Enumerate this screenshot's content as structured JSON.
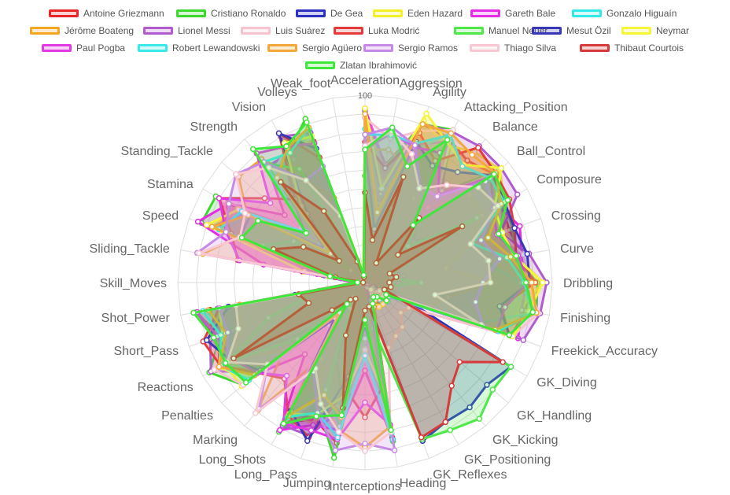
{
  "chart_data": {
    "type": "radar",
    "title": "",
    "axes": [
      "Acceleration",
      "Aggression",
      "Agility",
      "Attacking_Position",
      "Balance",
      "Ball_Control",
      "Composure",
      "Crossing",
      "Curve",
      "Dribbling",
      "Finishing",
      "Freekick_Accuracy",
      "GK_Diving",
      "GK_Handling",
      "GK_Kicking",
      "GK_Positioning",
      "GK_Reflexes",
      "Heading",
      "Interceptions",
      "Jumping",
      "Long_Pass",
      "Long_Shots",
      "Marking",
      "Penalties",
      "Reactions",
      "Short_Pass",
      "Shot_Power",
      "Skill_Moves",
      "Sliding_Tackle",
      "Speed",
      "Stamina",
      "Standing_Tackle",
      "Strength",
      "Vision",
      "Volleys",
      "Weak_foot"
    ],
    "r_range": [
      0,
      100
    ],
    "r_ticks": [
      0,
      10,
      20,
      30,
      40,
      50,
      60,
      70,
      80,
      90,
      100
    ],
    "r_tick_labels": [
      "",
      "",
      "",
      "",
      "",
      "",
      "",
      "",
      "",
      "",
      "100"
    ],
    "grid": true,
    "legend_position": "top",
    "series": [
      {
        "name": "Antoine Griezmann",
        "color": "#e8262a",
        "values": [
          88,
          64,
          90,
          89,
          85,
          90,
          84,
          82,
          85,
          89,
          87,
          83,
          14,
          8,
          14,
          11,
          14,
          84,
          36,
          87,
          78,
          86,
          26,
          81,
          90,
          83,
          84,
          5,
          34,
          83,
          84,
          42,
          62,
          85,
          80,
          3
        ]
      },
      {
        "name": "Cristiano Ronaldo",
        "color": "#3cd82e",
        "values": [
          91,
          63,
          90,
          94,
          63,
          93,
          86,
          84,
          81,
          92,
          93,
          76,
          7,
          11,
          15,
          14,
          11,
          86,
          29,
          95,
          72,
          92,
          22,
          85,
          96,
          82,
          92,
          5,
          23,
          93,
          92,
          31,
          80,
          81,
          93,
          4
        ]
      },
      {
        "name": "De Gea",
        "color": "#2b2fc2",
        "values": [
          57,
          43,
          60,
          12,
          43,
          34,
          55,
          17,
          21,
          18,
          13,
          19,
          90,
          85,
          87,
          86,
          90,
          12,
          32,
          67,
          44,
          12,
          14,
          40,
          84,
          31,
          38,
          1,
          13,
          58,
          44,
          16,
          64,
          65,
          13,
          3
        ]
      },
      {
        "name": "Eden Hazard",
        "color": "#f3f02a",
        "values": [
          93,
          54,
          92,
          85,
          91,
          94,
          86,
          80,
          82,
          95,
          84,
          79,
          11,
          12,
          6,
          8,
          8,
          54,
          41,
          54,
          80,
          82,
          25,
          86,
          87,
          86,
          79,
          4,
          22,
          87,
          79,
          32,
          66,
          88,
          79,
          4
        ]
      },
      {
        "name": "Gareth Bale",
        "color": "#e62be6",
        "values": [
          93,
          63,
          78,
          87,
          64,
          87,
          82,
          88,
          85,
          86,
          85,
          87,
          15,
          15,
          11,
          5,
          6,
          85,
          47,
          80,
          81,
          91,
          50,
          76,
          85,
          86,
          91,
          4,
          55,
          95,
          84,
          56,
          81,
          80,
          85,
          3
        ]
      },
      {
        "name": "Gonzalo Higuaín",
        "color": "#33e8e8",
        "values": [
          82,
          48,
          75,
          92,
          61,
          86,
          87,
          66,
          65,
          83,
          92,
          64,
          7,
          16,
          6,
          12,
          9,
          82,
          35,
          72,
          56,
          81,
          17,
          71,
          88,
          75,
          87,
          4,
          14,
          80,
          73,
          24,
          79,
          76,
          87,
          3
        ]
      },
      {
        "name": "Jérôme Boateng",
        "color": "#f5a623",
        "values": [
          71,
          72,
          66,
          52,
          52,
          73,
          72,
          60,
          44,
          68,
          45,
          37,
          7,
          8,
          6,
          10,
          8,
          78,
          88,
          80,
          68,
          47,
          89,
          57,
          80,
          71,
          68,
          2,
          88,
          72,
          73,
          88,
          86,
          63,
          48,
          4
        ]
      },
      {
        "name": "Lionel Messi",
        "color": "#b05ccf",
        "values": [
          92,
          48,
          90,
          93,
          95,
          95,
          94,
          77,
          89,
          97,
          95,
          90,
          6,
          11,
          15,
          14,
          8,
          71,
          22,
          68,
          87,
          88,
          13,
          74,
          95,
          88,
          80,
          4,
          26,
          87,
          74,
          28,
          61,
          90,
          85,
          4
        ]
      },
      {
        "name": "Luis Suárez",
        "color": "#f6c3cf",
        "values": [
          88,
          78,
          86,
          94,
          60,
          91,
          83,
          77,
          86,
          87,
          94,
          84,
          27,
          25,
          31,
          33,
          37,
          77,
          41,
          69,
          64,
          86,
          30,
          85,
          93,
          83,
          87,
          4,
          38,
          77,
          87,
          45,
          76,
          84,
          88,
          4
        ]
      },
      {
        "name": "Luka Modrić",
        "color": "#e33b3b",
        "values": [
          75,
          62,
          85,
          75,
          94,
          91,
          89,
          85,
          82,
          91,
          74,
          82,
          13,
          9,
          7,
          14,
          9,
          56,
          72,
          58,
          88,
          82,
          67,
          75,
          89,
          92,
          79,
          4,
          69,
          76,
          90,
          70,
          58,
          92,
          71,
          4
        ]
      },
      {
        "name": "Manuel Neuer",
        "color": "#4ee84a",
        "values": [
          57,
          29,
          42,
          15,
          44,
          30,
          69,
          15,
          14,
          30,
          13,
          11,
          90,
          89,
          95,
          91,
          89,
          25,
          30,
          78,
          61,
          16,
          10,
          47,
          85,
          55,
          25,
          1,
          11,
          58,
          44,
          10,
          83,
          70,
          13,
          4
        ]
      },
      {
        "name": "Mesut Özil",
        "color": "#3838b6",
        "values": [
          73,
          29,
          80,
          72,
          77,
          89,
          86,
          85,
          88,
          88,
          73,
          82,
          6,
          14,
          10,
          6,
          10,
          53,
          23,
          51,
          90,
          79,
          25,
          73,
          83,
          90,
          74,
          4,
          22,
          71,
          71,
          24,
          48,
          92,
          76,
          3
        ]
      },
      {
        "name": "Neymar",
        "color": "#f5f53a",
        "values": [
          93,
          51,
          96,
          87,
          82,
          95,
          80,
          78,
          81,
          95,
          89,
          84,
          9,
          9,
          15,
          15,
          11,
          62,
          36,
          61,
          75,
          81,
          21,
          81,
          90,
          81,
          79,
          5,
          33,
          90,
          78,
          24,
          53,
          86,
          83,
          5
        ]
      },
      {
        "name": "Paul Pogba",
        "color": "#e23ae2",
        "values": [
          71,
          81,
          77,
          80,
          61,
          88,
          79,
          75,
          83,
          87,
          76,
          75,
          5,
          6,
          2,
          4,
          3,
          77,
          64,
          85,
          84,
          87,
          65,
          75,
          82,
          84,
          91,
          5,
          68,
          79,
          90,
          66,
          90,
          84,
          79,
          4
        ]
      },
      {
        "name": "Robert Lewandowski",
        "color": "#3ae8e8",
        "values": [
          79,
          80,
          79,
          91,
          81,
          87,
          86,
          61,
          77,
          85,
          91,
          76,
          15,
          6,
          12,
          8,
          10,
          85,
          39,
          84,
          74,
          83,
          21,
          81,
          89,
          82,
          88,
          4,
          17,
          83,
          76,
          42,
          84,
          80,
          88,
          4
        ]
      },
      {
        "name": "Sergio Agüero",
        "color": "#f2a83a",
        "values": [
          90,
          38,
          90,
          92,
          89,
          91,
          84,
          70,
          79,
          89,
          93,
          74,
          13,
          15,
          6,
          11,
          14,
          70,
          20,
          73,
          64,
          82,
          21,
          77,
          90,
          79,
          85,
          4,
          20,
          87,
          72,
          24,
          73,
          83,
          88,
          4
        ]
      },
      {
        "name": "Sergio Ramos",
        "color": "#c68ae6",
        "values": [
          79,
          84,
          78,
          59,
          60,
          84,
          80,
          66,
          73,
          63,
          60,
          67,
          11,
          8,
          9,
          7,
          11,
          91,
          86,
          91,
          74,
          55,
          88,
          68,
          85,
          78,
          79,
          3,
          91,
          79,
          84,
          90,
          84,
          63,
          66,
          3
        ]
      },
      {
        "name": "Thiago Silva",
        "color": "#f9c8d2",
        "values": [
          73,
          82,
          73,
          58,
          68,
          79,
          82,
          60,
          67,
          67,
          38,
          66,
          9,
          12,
          5,
          9,
          12,
          81,
          90,
          81,
          69,
          53,
          91,
          68,
          85,
          72,
          70,
          2,
          90,
          71,
          74,
          90,
          80,
          63,
          38,
          3
        ]
      },
      {
        "name": "Thibaut Courtois",
        "color": "#d63a3a",
        "values": [
          48,
          23,
          60,
          12,
          45,
          23,
          60,
          14,
          17,
          13,
          14,
          11,
          85,
          66,
          72,
          86,
          88,
          13,
          15,
          68,
          30,
          10,
          12,
          23,
          81,
          32,
          36,
          1,
          16,
          52,
          38,
          18,
          70,
          44,
          12,
          3
        ]
      },
      {
        "name": "Zlatan Ibrahimović",
        "color": "#3ee83a",
        "values": [
          71,
          84,
          66,
          88,
          40,
          90,
          88,
          76,
          82,
          86,
          91,
          82,
          13,
          15,
          10,
          9,
          12,
          80,
          20,
          72,
          76,
          87,
          15,
          83,
          86,
          86,
          93,
          4,
          19,
          70,
          66,
          41,
          93,
          84,
          91,
          4
        ]
      }
    ]
  }
}
